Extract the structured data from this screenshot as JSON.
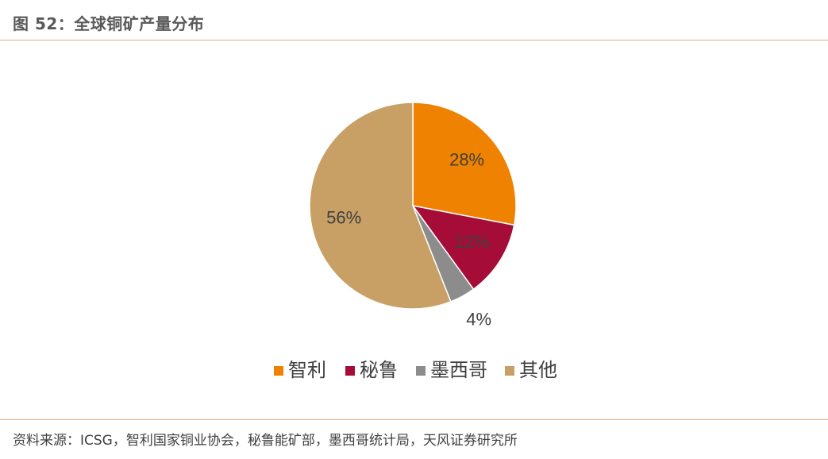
{
  "figure": {
    "title": "图 52：全球铜矿产量分布",
    "source": "资料来源：ICSG，智利国家铜业协会，秘鲁能矿部，墨西哥统计局，天风证券研究所"
  },
  "chart_data": {
    "type": "pie",
    "title": "",
    "legend_position": "bottom",
    "slices": [
      {
        "name": "智利",
        "value": 28,
        "label": "28%",
        "color": "#EF8200"
      },
      {
        "name": "秘鲁",
        "value": 12,
        "label": "12%",
        "color": "#A50D38"
      },
      {
        "name": "墨西哥",
        "value": 4,
        "label": "4%",
        "color": "#8C8C8C"
      },
      {
        "name": "其他",
        "value": 56,
        "label": "56%",
        "color": "#C8A066"
      }
    ]
  }
}
